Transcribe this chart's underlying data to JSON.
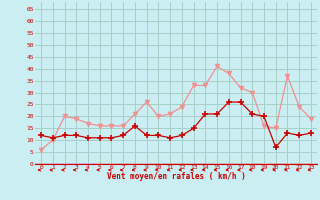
{
  "hours": [
    0,
    1,
    2,
    3,
    4,
    5,
    6,
    7,
    8,
    9,
    10,
    11,
    12,
    13,
    14,
    15,
    16,
    17,
    18,
    19,
    20,
    21,
    22,
    23
  ],
  "wind_avg": [
    12,
    11,
    12,
    12,
    11,
    11,
    11,
    12,
    16,
    12,
    12,
    11,
    12,
    15,
    21,
    21,
    26,
    26,
    21,
    20,
    7,
    13,
    12,
    13
  ],
  "wind_gust": [
    6,
    10,
    20,
    19,
    17,
    16,
    16,
    16,
    21,
    26,
    20,
    21,
    24,
    33,
    33,
    41,
    38,
    32,
    30,
    16,
    15,
    37,
    24,
    19
  ],
  "bg_color": "#cbeef3",
  "grid_color": "#a8cfc8",
  "avg_color": "#cc0000",
  "gust_color": "#f09090",
  "xlabel": "Vent moyen/en rafales ( km/h )",
  "yticks": [
    0,
    5,
    10,
    15,
    20,
    25,
    30,
    35,
    40,
    45,
    50,
    55,
    60,
    65
  ],
  "ylim": [
    0,
    68
  ],
  "xlim": [
    -0.5,
    23.5
  ]
}
